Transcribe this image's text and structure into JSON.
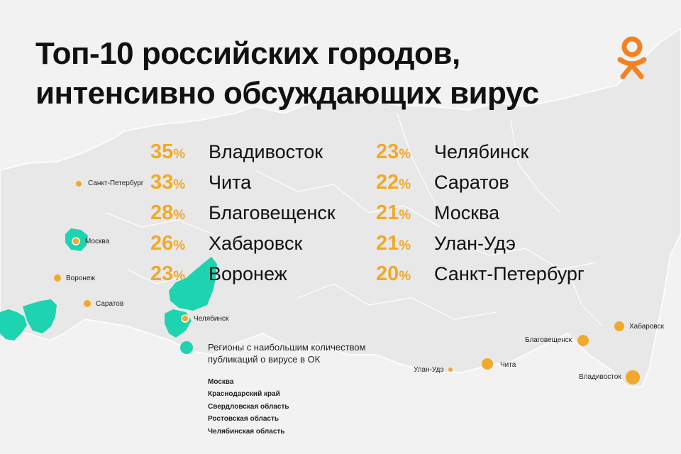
{
  "title": {
    "line1": "Топ-10 российских городов,",
    "line2": "интенсивно обсуждающих вирус"
  },
  "logo": {
    "name": "Odnoklassniki (OK) logo",
    "color": "#f58220"
  },
  "colors": {
    "accent_orange": "#f0a92a",
    "region_teal": "#1dd3b0",
    "map_land": "#e8e8e8"
  },
  "ranking": {
    "left": [
      {
        "percent": "35",
        "unit": "%",
        "city": "Владивосток"
      },
      {
        "percent": "33",
        "unit": "%",
        "city": "Чита"
      },
      {
        "percent": "28",
        "unit": "%",
        "city": "Благовещенск"
      },
      {
        "percent": "26",
        "unit": "%",
        "city": "Хабаровск"
      },
      {
        "percent": "23",
        "unit": "%",
        "city": "Воронеж"
      }
    ],
    "right": [
      {
        "percent": "23",
        "unit": "%",
        "city": "Челябинск"
      },
      {
        "percent": "22",
        "unit": "%",
        "city": "Саратов"
      },
      {
        "percent": "21",
        "unit": "%",
        "city": "Москва"
      },
      {
        "percent": "21",
        "unit": "%",
        "city": "Улан-Удэ"
      },
      {
        "percent": "20",
        "unit": "%",
        "city": "Санкт-Петербург"
      }
    ]
  },
  "map_labels": {
    "spb": "Санкт-Петербург",
    "moscow": "Москва",
    "voronezh": "Воронеж",
    "saratov": "Саратов",
    "chelyabinsk": "Челябинск",
    "ulan_ude": "Улан-Удэ",
    "chita": "Чита",
    "blagoveshchensk": "Благовещенск",
    "khabarovsk": "Хабаровск",
    "vladivostok": "Владивосток"
  },
  "legend": {
    "description": "Регионы с наибольшим количеством публикаций о вирусе в ОК",
    "regions": [
      "Москва",
      "Краснодарский край",
      "Свердловская область",
      "Ростовская область",
      "Челябинская область"
    ]
  }
}
